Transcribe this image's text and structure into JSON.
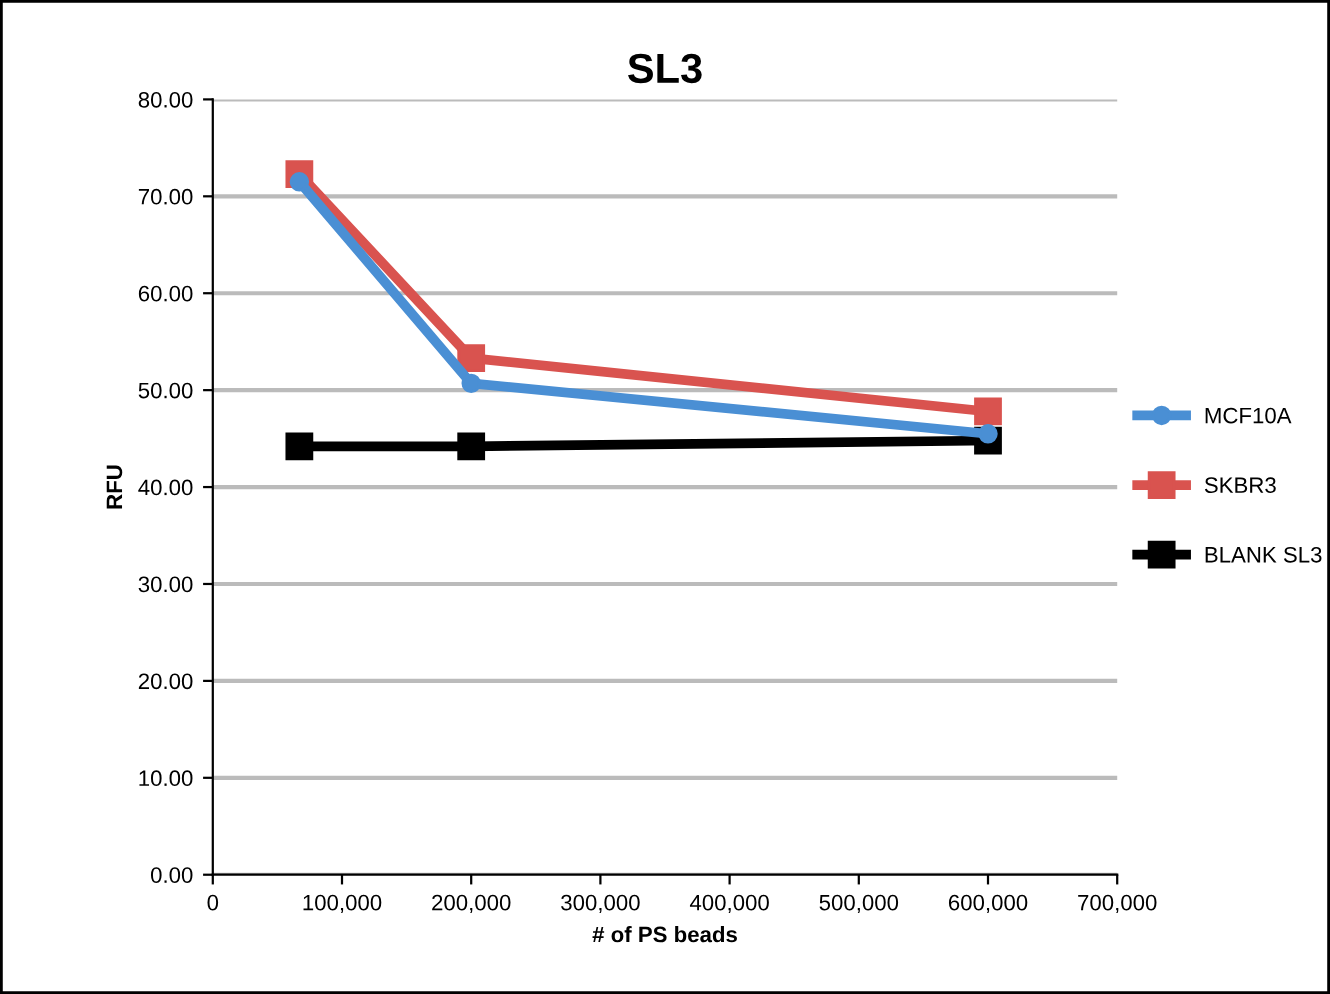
{
  "chart_data": {
    "type": "line",
    "title": "SL3",
    "xlabel": "# of PS beads",
    "ylabel": "RFU",
    "x": [
      67000,
      200000,
      600000
    ],
    "series": [
      {
        "name": "MCF10A",
        "color": "#4a8fd4",
        "values": [
          71.5,
          50.7,
          45.5
        ],
        "marker": "circle"
      },
      {
        "name": "SKBR3",
        "color": "#d9534f",
        "values": [
          72.3,
          53.3,
          47.8
        ],
        "marker": "square"
      },
      {
        "name": "BLANK SL3",
        "color": "#000000",
        "values": [
          44.2,
          44.2,
          44.8
        ],
        "marker": "square"
      }
    ],
    "xlim": [
      0,
      700000
    ],
    "xticks": [
      {
        "value": 0,
        "label": "0"
      },
      {
        "value": 100000,
        "label": "100,000"
      },
      {
        "value": 200000,
        "label": "200,000"
      },
      {
        "value": 300000,
        "label": "300,000"
      },
      {
        "value": 400000,
        "label": "400,000"
      },
      {
        "value": 500000,
        "label": "500,000"
      },
      {
        "value": 600000,
        "label": "600,000"
      },
      {
        "value": 700000,
        "label": "700,000"
      }
    ],
    "ylim": [
      0,
      80
    ],
    "yticks": [
      {
        "value": 0,
        "label": "0.00"
      },
      {
        "value": 10,
        "label": "10.00"
      },
      {
        "value": 20,
        "label": "20.00"
      },
      {
        "value": 30,
        "label": "30.00"
      },
      {
        "value": 40,
        "label": "40.00"
      },
      {
        "value": 50,
        "label": "50.00"
      },
      {
        "value": 60,
        "label": "60.00"
      },
      {
        "value": 70,
        "label": "70.00"
      },
      {
        "value": 80,
        "label": "80.00"
      }
    ],
    "grid": "y",
    "legend": "right"
  }
}
